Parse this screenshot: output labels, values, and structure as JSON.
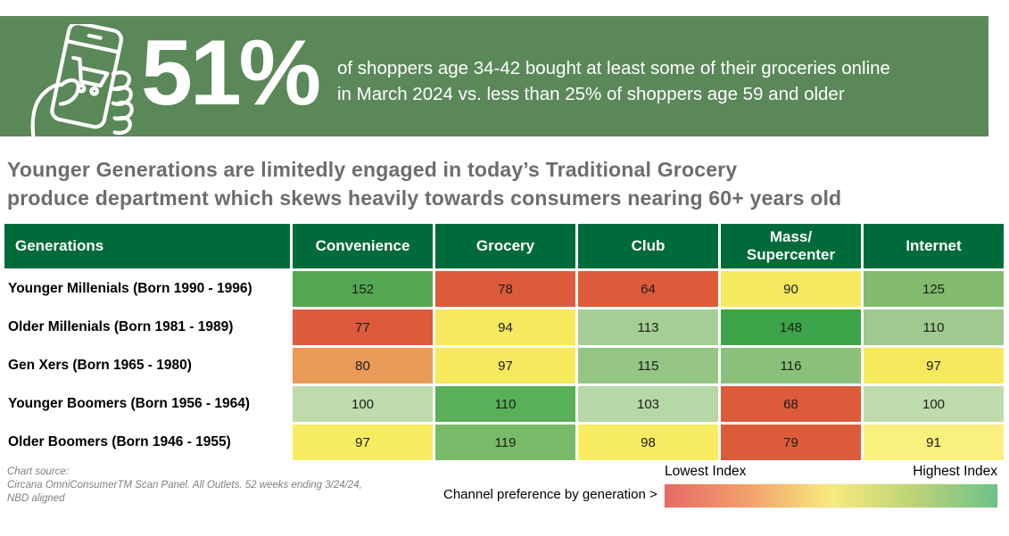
{
  "banner": {
    "icon": "hand-holding-phone-cart-icon",
    "stat": "51%",
    "description_line1": "of shoppers age 34-42 bought at least some of their groceries online",
    "description_line2": "in March 2024 vs. less than 25% of shoppers age 59 and older"
  },
  "headline": {
    "line1": "Younger Generations are limitedly engaged in today’s Traditional Grocery",
    "line2": "produce department which skews heavily towards consumers nearing 60+ years old"
  },
  "chart_data": {
    "type": "heatmap",
    "title": "Younger Generations are limitedly engaged in today’s Traditional Grocery produce department which skews heavily towards consumers nearing 60+ years old",
    "row_header": "Generations",
    "columns": [
      "Convenience",
      "Grocery",
      "Club",
      "Mass/\nSupercenter",
      "Internet"
    ],
    "rows": [
      {
        "label": "Younger Millenials (Born 1990 - 1996)",
        "values": [
          152,
          78,
          64,
          90,
          125
        ],
        "colors": [
          "#55a853",
          "#dc5b3b",
          "#dc5b3b",
          "#f6e95e",
          "#82bb6e"
        ]
      },
      {
        "label": "Older Millenials (Born 1981 - 1989)",
        "values": [
          77,
          94,
          113,
          148,
          110
        ],
        "colors": [
          "#dc5b3b",
          "#f6e95e",
          "#a5cd96",
          "#3ba449",
          "#9fc98f"
        ]
      },
      {
        "label": "Gen Xers (Born 1965 - 1980)",
        "values": [
          80,
          97,
          115,
          116,
          97
        ],
        "colors": [
          "#ea9a59",
          "#f6e95e",
          "#95c685",
          "#8bc07a",
          "#f6e95e"
        ]
      },
      {
        "label": "Younger Boomers (Born 1956 - 1964)",
        "values": [
          100,
          110,
          103,
          68,
          100
        ],
        "colors": [
          "#bedcae",
          "#58b059",
          "#b6d8a6",
          "#dc5b3b",
          "#bedcae"
        ]
      },
      {
        "label": "Older Boomers (Born 1946 - 1955)",
        "values": [
          97,
          119,
          98,
          79,
          91
        ],
        "colors": [
          "#f8ec63",
          "#79ba69",
          "#f8ec63",
          "#dc5b3b",
          "#faf07e"
        ]
      }
    ],
    "legend": {
      "low_label": "Lowest Index",
      "high_label": "Highest Index",
      "gradient_colors": [
        "#e66a66",
        "#f2a06c",
        "#f8ea7e",
        "#bcd378",
        "#6ec287"
      ],
      "position": "bottom-right"
    }
  },
  "footer": {
    "source_lines": [
      "Chart source:",
      "Circana OmniConsumerTM Scan Panel. All Outlets. 52 weeks ending 3/24/24,",
      "NBD aligned"
    ],
    "channel_note": "Channel preference by generation >"
  },
  "colors": {
    "banner_bg": "#5a8859",
    "table_header_bg": "#006b3a",
    "headline_text": "#6c6d70"
  }
}
